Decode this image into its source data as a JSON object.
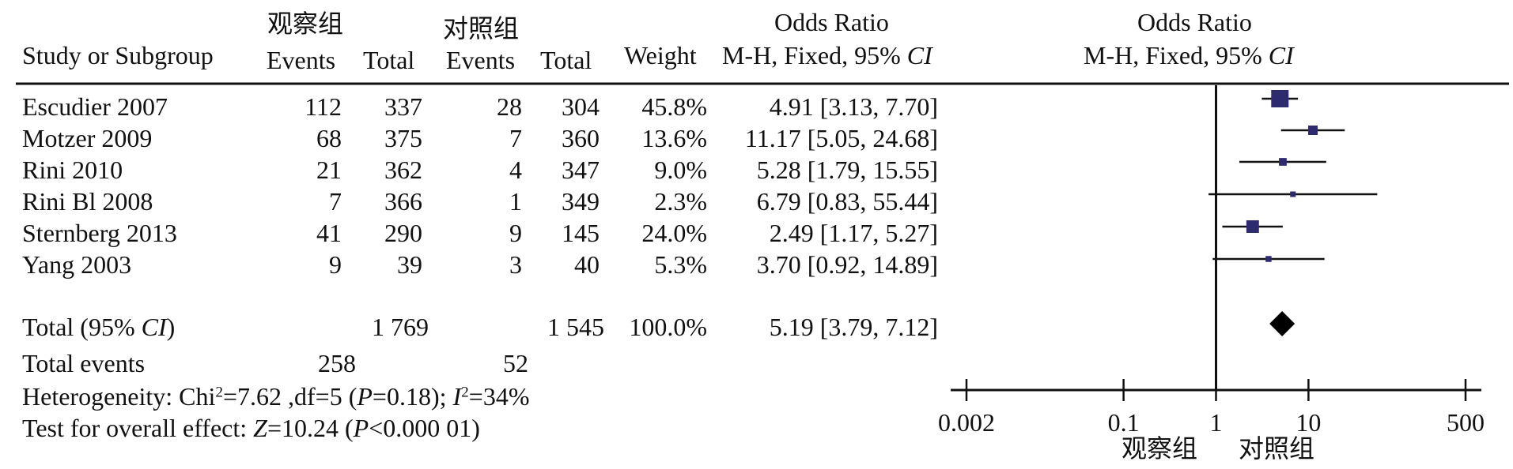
{
  "header": {
    "group_experimental": "观察组",
    "group_control": "对照组",
    "study_col": "Study or Subgroup",
    "events": "Events",
    "total": "Total",
    "weight": "Weight",
    "odds_ratio": "Odds Ratio",
    "method_prefix": "M-H, Fixed, 95%",
    "ci": "CI"
  },
  "studies": [
    {
      "name": "Escudier 2007",
      "exp_events": "112",
      "exp_total": "337",
      "ctl_events": "28",
      "ctl_total": "304",
      "weight": "45.8%",
      "or_text": "4.91 [3.13, 7.70]"
    },
    {
      "name": "Motzer 2009",
      "exp_events": "68",
      "exp_total": "375",
      "ctl_events": "7",
      "ctl_total": "360",
      "weight": "13.6%",
      "or_text": "11.17 [5.05, 24.68]"
    },
    {
      "name": "Rini 2010",
      "exp_events": "21",
      "exp_total": "362",
      "ctl_events": "4",
      "ctl_total": "347",
      "weight": "9.0%",
      "or_text": "5.28 [1.79, 15.55]"
    },
    {
      "name": "Rini Bl 2008",
      "exp_events": "7",
      "exp_total": "366",
      "ctl_events": "1",
      "ctl_total": "349",
      "weight": "2.3%",
      "or_text": "6.79 [0.83, 55.44]"
    },
    {
      "name": "Sternberg 2013",
      "exp_events": "41",
      "exp_total": "290",
      "ctl_events": "9",
      "ctl_total": "145",
      "weight": "24.0%",
      "or_text": "2.49 [1.17, 5.27]"
    },
    {
      "name": "Yang 2003",
      "exp_events": "9",
      "exp_total": "39",
      "ctl_events": "3",
      "ctl_total": "40",
      "weight": "5.3%",
      "or_text": "3.70 [0.92, 14.89]"
    }
  ],
  "total": {
    "label_prefix": "Total (95%",
    "label_ci": "CI",
    "label_suffix": ")",
    "exp_total": "1 769",
    "ctl_total": "1 545",
    "weight": "100.0%",
    "or_text": "5.19 [3.79, 7.12]"
  },
  "total_events": {
    "label": "Total events",
    "exp": "258",
    "ctl": "52"
  },
  "heterogeneity": {
    "prefix": "Heterogeneity: Chi",
    "sup": "2",
    "mid": "=7.62 ,df=5 (",
    "p": "P",
    "p_val": "=0.18); ",
    "i": "I",
    "i_sup": "2",
    "i_val": "=34%"
  },
  "overall": {
    "prefix": "Test for overall effect: ",
    "z": "Z",
    "z_val": "=10.24 (",
    "p": "P",
    "p_val": "<0.000 01)"
  },
  "axis_labels": {
    "left": "观察组",
    "right": "对照组"
  },
  "colors": {
    "marker": "#2e2a6e",
    "diamond": "#000000",
    "text": "#111111"
  },
  "chart_data": {
    "type": "forest",
    "x_scale": "log",
    "xlim": [
      0.002,
      500
    ],
    "null_line": 1,
    "ticks": [
      0.002,
      0.1,
      1,
      10,
      500
    ],
    "tick_labels": [
      "0.002",
      "0.1",
      "1",
      "10",
      "500"
    ],
    "studies": [
      {
        "label": "Escudier 2007",
        "or": 4.91,
        "lo": 3.13,
        "hi": 7.7,
        "weight": 45.8
      },
      {
        "label": "Motzer 2009",
        "or": 11.17,
        "lo": 5.05,
        "hi": 24.68,
        "weight": 13.6
      },
      {
        "label": "Rini 2010",
        "or": 5.28,
        "lo": 1.79,
        "hi": 15.55,
        "weight": 9.0
      },
      {
        "label": "Rini Bl 2008",
        "or": 6.79,
        "lo": 0.83,
        "hi": 55.44,
        "weight": 2.3
      },
      {
        "label": "Sternberg 2013",
        "or": 2.49,
        "lo": 1.17,
        "hi": 5.27,
        "weight": 24.0
      },
      {
        "label": "Yang 2003",
        "or": 3.7,
        "lo": 0.92,
        "hi": 14.89,
        "weight": 5.3
      }
    ],
    "pooled": {
      "label": "Total (95% CI)",
      "or": 5.19,
      "lo": 3.79,
      "hi": 7.12
    }
  }
}
